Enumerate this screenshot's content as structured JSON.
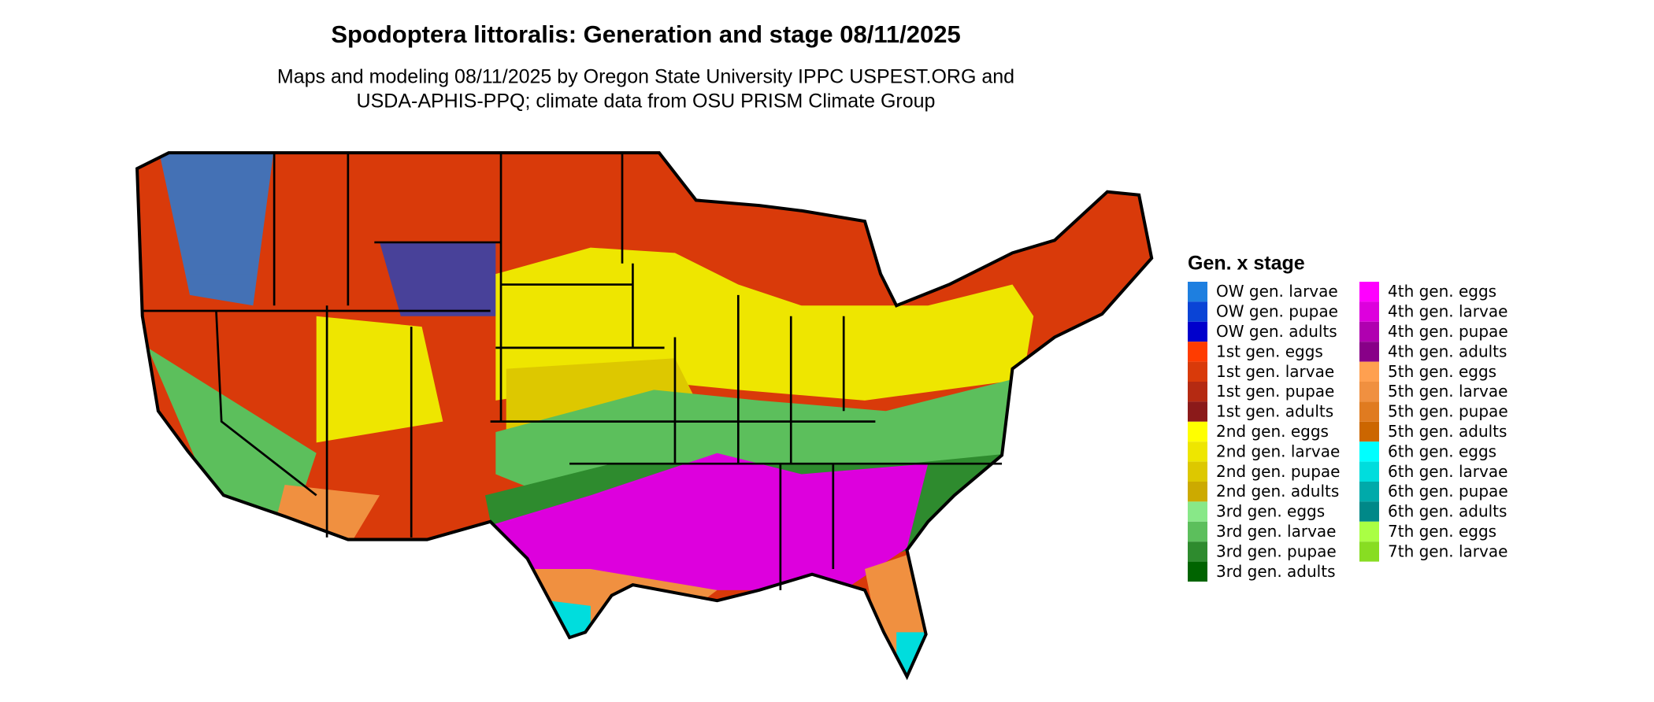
{
  "title": "Spodoptera littoralis: Generation and stage 08/11/2025",
  "subtitle": [
    "Maps and modeling 08/11/2025 by Oregon State University IPPC USPEST.ORG and",
    "USDA-APHIS-PPQ; climate data from OSU PRISM Climate Group"
  ],
  "legend": {
    "title": "Gen. x stage",
    "items": [
      {
        "label": "OW gen. larvae",
        "color": "#1e7fe0"
      },
      {
        "label": "OW gen. pupae",
        "color": "#0a44d6"
      },
      {
        "label": "OW gen. adults",
        "color": "#0000cc"
      },
      {
        "label": "1st gen. eggs",
        "color": "#ff3c00"
      },
      {
        "label": "1st gen. larvae",
        "color": "#d93a0a"
      },
      {
        "label": "1st gen. pupae",
        "color": "#b52a12"
      },
      {
        "label": "1st gen. adults",
        "color": "#8b1a1a"
      },
      {
        "label": "2nd gen. eggs",
        "color": "#ffff00"
      },
      {
        "label": "2nd gen. larvae",
        "color": "#eee600"
      },
      {
        "label": "2nd gen. pupae",
        "color": "#ddc800"
      },
      {
        "label": "2nd gen. adults",
        "color": "#ccaa00"
      },
      {
        "label": "3rd gen. eggs",
        "color": "#88e888"
      },
      {
        "label": "3rd gen. larvae",
        "color": "#5cbf5c"
      },
      {
        "label": "3rd gen. pupae",
        "color": "#2e8b2e"
      },
      {
        "label": "3rd gen. adults",
        "color": "#006400"
      },
      {
        "label": "4th gen. eggs",
        "color": "#ff00ff"
      },
      {
        "label": "4th gen. larvae",
        "color": "#dd00dd"
      },
      {
        "label": "4th gen. pupae",
        "color": "#b000b0"
      },
      {
        "label": "4th gen. adults",
        "color": "#880088"
      },
      {
        "label": "5th gen. eggs",
        "color": "#ffa050"
      },
      {
        "label": "5th gen. larvae",
        "color": "#f09040"
      },
      {
        "label": "5th gen. pupae",
        "color": "#e07b20"
      },
      {
        "label": "5th gen. adults",
        "color": "#cc6600"
      },
      {
        "label": "6th gen. eggs",
        "color": "#00ffff"
      },
      {
        "label": "6th gen. larvae",
        "color": "#00dddd"
      },
      {
        "label": "6th gen. pupae",
        "color": "#00aaaa"
      },
      {
        "label": "6th gen. adults",
        "color": "#008888"
      },
      {
        "label": "7th gen. eggs",
        "color": "#aaff44"
      },
      {
        "label": "7th gen. larvae",
        "color": "#88dd22"
      }
    ]
  }
}
